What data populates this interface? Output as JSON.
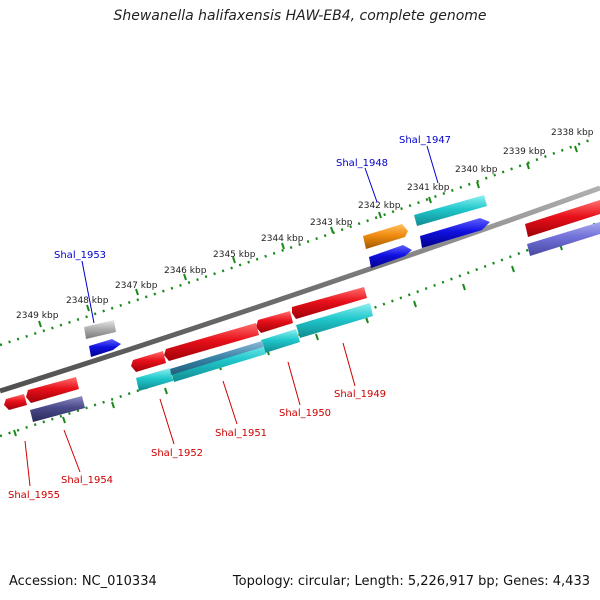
{
  "title": "Shewanella halifaxensis HAW-EB4, complete genome",
  "footer": {
    "accession": "Accession: NC_010334",
    "summary": "Topology: circular; Length: 5,226,917 bp; Genes: 4,433"
  },
  "scale_labels": [
    "2338 kbp",
    "2339 kbp",
    "2340 kbp",
    "2341 kbp",
    "2342 kbp",
    "2343 kbp",
    "2344 kbp",
    "2345 kbp",
    "2346 kbp",
    "2347 kbp",
    "2348 kbp",
    "2349 kbp"
  ],
  "forward_genes": [
    "Shal_1947",
    "Shal_1948",
    "Shal_1953"
  ],
  "reverse_genes": [
    "Shal_1949",
    "Shal_1950",
    "Shal_1951",
    "Shal_1952",
    "Shal_1954",
    "Shal_1955"
  ],
  "colors": {
    "forward_label": "#0000cc",
    "reverse_label": "#cc0000",
    "red_gene": "#e8101a",
    "blue_gene": "#1010e0",
    "cyan_gene": "#20c8cc",
    "orange_gene": "#f08c10",
    "gray_gene": "#b0b0b0",
    "slate_gene": "#4a4a8a",
    "periwinkle_gene": "#7070d8",
    "backbone": "#777777",
    "ticks": "#1a8a1a"
  }
}
